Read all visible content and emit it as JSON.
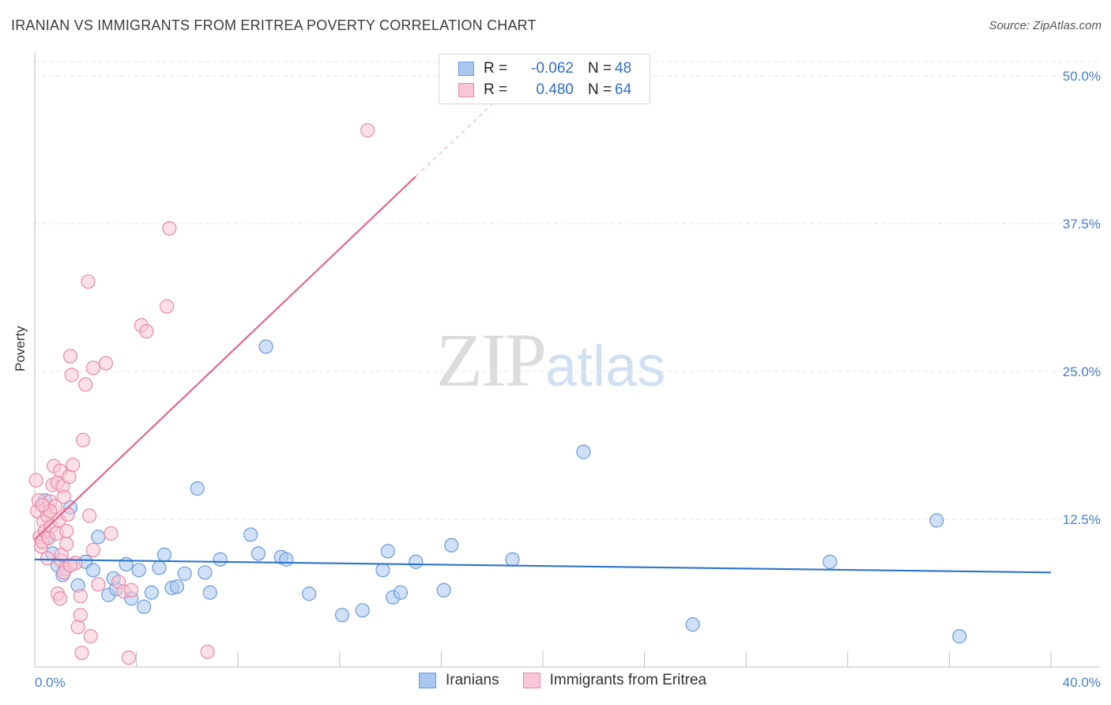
{
  "header": {
    "title": "IRANIAN VS IMMIGRANTS FROM ERITREA POVERTY CORRELATION CHART",
    "source": "Source: ZipAtlas.com"
  },
  "watermark": {
    "zip": "ZIP",
    "atlas": "atlas"
  },
  "legend": {
    "rows": [
      {
        "r_label": "R =",
        "r_value": "-0.062",
        "n_label": "N =",
        "n_value": "48",
        "color": "#a9c8f0",
        "border": "#6a9ad8"
      },
      {
        "r_label": "R =",
        "r_value": "0.480",
        "n_label": "N =",
        "n_value": "64",
        "color": "#f8c6d6",
        "border": "#e889a8"
      }
    ]
  },
  "bottom_legend": {
    "items": [
      {
        "label": "Iranians",
        "color": "#a9c8f0",
        "border": "#6a9ad8"
      },
      {
        "label": "Immigrants from Eritrea",
        "color": "#f8c6d6",
        "border": "#e889a8"
      }
    ]
  },
  "chart_data": {
    "type": "scatter",
    "title": "IRANIAN VS IMMIGRANTS FROM ERITREA POVERTY CORRELATION CHART",
    "xlabel": "",
    "ylabel": "Poverty",
    "xlim": [
      0,
      40
    ],
    "ylim": [
      0,
      50
    ],
    "x_tick_labels": [
      "0.0%",
      "40.0%"
    ],
    "y_ticks": [
      12.5,
      25.0,
      37.5,
      50.0
    ],
    "y_tick_labels": [
      "12.5%",
      "25.0%",
      "37.5%",
      "50.0%"
    ],
    "grid": true,
    "series": [
      {
        "name": "Iranians",
        "color": "#6a9ad8",
        "fill": "#a9c8f0",
        "trend": {
          "x": [
            0,
            40
          ],
          "y": [
            9.1,
            8.0
          ],
          "color": "#2f74cc"
        },
        "points": [
          [
            0.4,
            14.1
          ],
          [
            0.5,
            11.0
          ],
          [
            0.7,
            9.6
          ],
          [
            0.9,
            8.6
          ],
          [
            1.1,
            7.8
          ],
          [
            1.4,
            13.5
          ],
          [
            1.7,
            6.9
          ],
          [
            2.0,
            8.9
          ],
          [
            2.3,
            8.2
          ],
          [
            2.5,
            11.0
          ],
          [
            2.9,
            6.1
          ],
          [
            3.2,
            6.6
          ],
          [
            3.6,
            8.7
          ],
          [
            3.8,
            5.8
          ],
          [
            4.1,
            8.2
          ],
          [
            4.3,
            5.1
          ],
          [
            4.6,
            6.3
          ],
          [
            4.9,
            8.4
          ],
          [
            5.1,
            9.5
          ],
          [
            5.4,
            6.7
          ],
          [
            5.6,
            6.8
          ],
          [
            5.9,
            7.9
          ],
          [
            6.4,
            15.1
          ],
          [
            6.7,
            8.0
          ],
          [
            6.9,
            6.3
          ],
          [
            7.3,
            9.1
          ],
          [
            8.5,
            11.2
          ],
          [
            8.8,
            9.6
          ],
          [
            9.1,
            27.1
          ],
          [
            9.7,
            9.3
          ],
          [
            9.9,
            9.1
          ],
          [
            10.8,
            6.2
          ],
          [
            12.1,
            4.4
          ],
          [
            12.9,
            4.8
          ],
          [
            13.7,
            8.2
          ],
          [
            13.9,
            9.8
          ],
          [
            14.1,
            5.9
          ],
          [
            14.4,
            6.3
          ],
          [
            15.0,
            8.9
          ],
          [
            16.1,
            6.5
          ],
          [
            16.4,
            10.3
          ],
          [
            18.8,
            9.1
          ],
          [
            21.6,
            18.2
          ],
          [
            25.9,
            3.6
          ],
          [
            31.3,
            8.9
          ],
          [
            35.5,
            12.4
          ],
          [
            36.4,
            2.6
          ],
          [
            3.1,
            7.5
          ]
        ]
      },
      {
        "name": "Immigrants from Eritrea",
        "color": "#e889a8",
        "fill": "#f8c6d6",
        "trend": {
          "x": [
            0,
            15
          ],
          "y": [
            10.8,
            41.5
          ],
          "color": "#e2688f"
        },
        "trend_dashed": {
          "x": [
            15,
            18
          ],
          "y": [
            41.5,
            47.6
          ]
        },
        "points": [
          [
            0.05,
            15.8
          ],
          [
            0.1,
            13.2
          ],
          [
            0.15,
            14.1
          ],
          [
            0.2,
            11.0
          ],
          [
            0.25,
            10.2
          ],
          [
            0.3,
            10.6
          ],
          [
            0.35,
            12.3
          ],
          [
            0.4,
            11.5
          ],
          [
            0.45,
            13.4
          ],
          [
            0.5,
            12.8
          ],
          [
            0.55,
            10.9
          ],
          [
            0.6,
            14.0
          ],
          [
            0.65,
            11.9
          ],
          [
            0.7,
            15.4
          ],
          [
            0.75,
            17.0
          ],
          [
            0.8,
            13.6
          ],
          [
            0.85,
            11.3
          ],
          [
            0.9,
            15.6
          ],
          [
            0.95,
            12.4
          ],
          [
            1.0,
            16.6
          ],
          [
            1.05,
            9.0
          ],
          [
            1.1,
            15.3
          ],
          [
            1.15,
            14.4
          ],
          [
            1.2,
            8.3
          ],
          [
            1.25,
            11.5
          ],
          [
            1.3,
            12.9
          ],
          [
            1.35,
            16.1
          ],
          [
            1.4,
            26.3
          ],
          [
            1.45,
            24.7
          ],
          [
            1.5,
            17.1
          ],
          [
            1.6,
            8.8
          ],
          [
            1.7,
            3.4
          ],
          [
            1.8,
            4.4
          ],
          [
            1.85,
            1.2
          ],
          [
            1.9,
            19.2
          ],
          [
            2.0,
            23.9
          ],
          [
            2.1,
            32.6
          ],
          [
            2.2,
            2.6
          ],
          [
            2.3,
            25.3
          ],
          [
            2.5,
            7.0
          ],
          [
            2.8,
            25.7
          ],
          [
            3.0,
            11.3
          ],
          [
            3.3,
            7.2
          ],
          [
            3.5,
            6.4
          ],
          [
            3.7,
            0.8
          ],
          [
            4.2,
            28.9
          ],
          [
            4.4,
            28.4
          ],
          [
            5.2,
            30.5
          ],
          [
            5.3,
            37.1
          ],
          [
            6.8,
            1.3
          ],
          [
            13.1,
            45.4
          ],
          [
            0.9,
            6.2
          ],
          [
            1.0,
            5.8
          ],
          [
            1.05,
            9.5
          ],
          [
            1.15,
            8.0
          ],
          [
            1.25,
            10.4
          ],
          [
            1.8,
            6.0
          ],
          [
            2.15,
            12.8
          ],
          [
            2.3,
            9.9
          ],
          [
            3.8,
            6.5
          ],
          [
            0.5,
            9.2
          ],
          [
            0.6,
            13.2
          ],
          [
            0.3,
            13.7
          ],
          [
            1.4,
            8.6
          ]
        ]
      }
    ]
  }
}
